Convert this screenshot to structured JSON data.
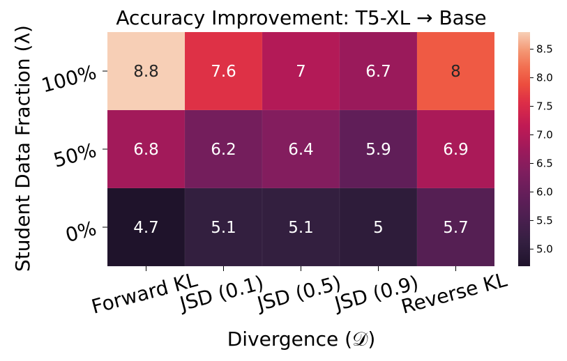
{
  "chart_data": {
    "type": "heatmap",
    "title": "Accuracy Improvement: T5-XL → Base",
    "xlabel": "Divergence (𝒟)",
    "ylabel": "Student Data Fraction (λ)",
    "x_categories": [
      "Forward KL",
      "JSD (0.1)",
      "JSD (0.5)",
      "JSD (0.9)",
      "Reverse KL"
    ],
    "y_categories": [
      "100%",
      "50%",
      "0%"
    ],
    "values": [
      [
        8.8,
        7.6,
        7,
        6.7,
        8
      ],
      [
        6.8,
        6.2,
        6.4,
        5.9,
        6.9
      ],
      [
        4.7,
        5.1,
        5.1,
        5,
        5.7
      ]
    ],
    "value_labels": [
      [
        "8.8",
        "7.6",
        "7",
        "6.7",
        "8"
      ],
      [
        "6.8",
        "6.2",
        "6.4",
        "5.9",
        "6.9"
      ],
      [
        "4.7",
        "5.1",
        "5.1",
        "5",
        "5.7"
      ]
    ],
    "vmin": 4.7,
    "vmax": 8.8,
    "colormap": "rocket",
    "colorbar_ticks": [
      "5.0",
      "5.5",
      "6.0",
      "6.5",
      "7.0",
      "7.5",
      "8.0",
      "8.5"
    ],
    "colorbar_tick_values": [
      5.0,
      5.5,
      6.0,
      6.5,
      7.0,
      7.5,
      8.0,
      8.5
    ]
  }
}
